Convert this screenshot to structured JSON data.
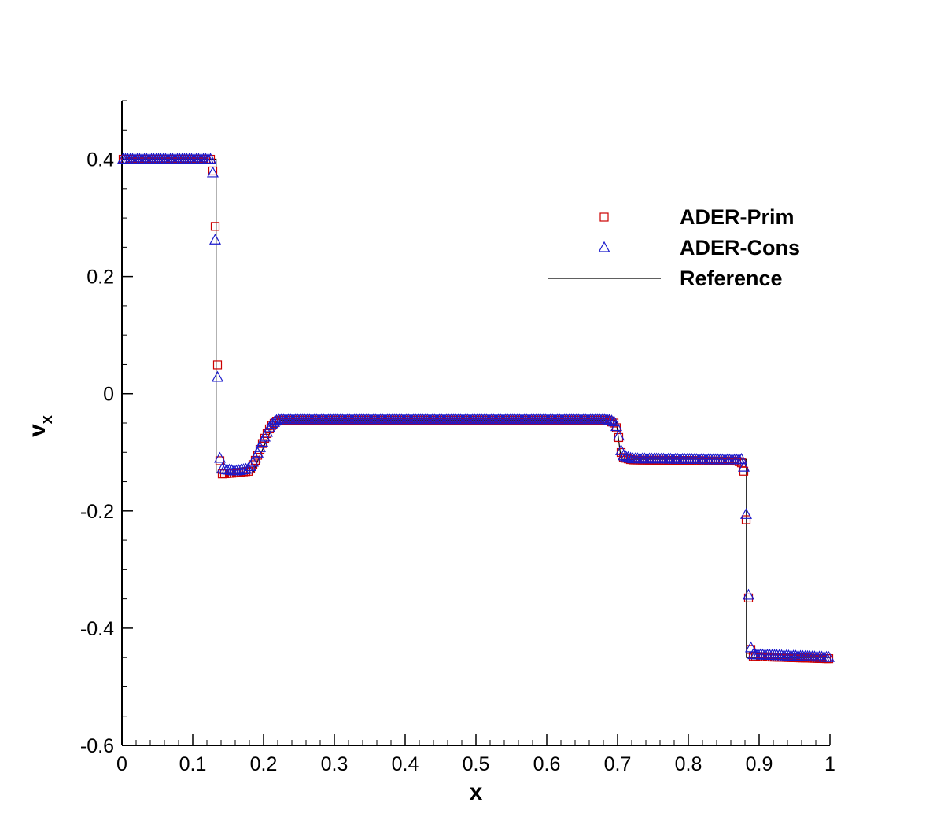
{
  "chart_data": {
    "type": "scatter",
    "xlabel": "x",
    "ylabel": "v",
    "ylabel_subscript": "x",
    "xlim": [
      0,
      1
    ],
    "ylim": [
      -0.6,
      0.5
    ],
    "x_ticks": [
      "0",
      "0.1",
      "0.2",
      "0.3",
      "0.4",
      "0.5",
      "0.6",
      "0.7",
      "0.8",
      "0.9",
      "1"
    ],
    "y_ticks": [
      "-0.6",
      "-0.4",
      "-0.2",
      "0",
      "0.2",
      "0.4"
    ],
    "grid": false,
    "legend_position": "top-right",
    "series": [
      {
        "name": "ADER-Prim",
        "marker": "square",
        "color": "#cc0000",
        "breakpoints": [
          [
            0.0,
            0.4
          ],
          [
            0.125,
            0.4
          ],
          [
            0.13,
            0.37
          ],
          [
            0.133,
            0.218
          ],
          [
            0.136,
            -0.035
          ],
          [
            0.139,
            -0.137
          ],
          [
            0.16,
            -0.135
          ],
          [
            0.18,
            -0.132
          ],
          [
            0.19,
            -0.11
          ],
          [
            0.2,
            -0.08
          ],
          [
            0.21,
            -0.056
          ],
          [
            0.22,
            -0.045
          ],
          [
            0.686,
            -0.045
          ],
          [
            0.695,
            -0.05
          ],
          [
            0.7,
            -0.062
          ],
          [
            0.703,
            -0.085
          ],
          [
            0.706,
            -0.108
          ],
          [
            0.72,
            -0.113
          ],
          [
            0.87,
            -0.115
          ],
          [
            0.875,
            -0.118
          ],
          [
            0.879,
            -0.135
          ],
          [
            0.883,
            -0.255
          ],
          [
            0.886,
            -0.395
          ],
          [
            0.889,
            -0.448
          ],
          [
            1.0,
            -0.452
          ]
        ]
      },
      {
        "name": "ADER-Cons",
        "marker": "triangle",
        "color": "#1a1acc",
        "breakpoints": [
          [
            0.0,
            0.4
          ],
          [
            0.125,
            0.4
          ],
          [
            0.13,
            0.365
          ],
          [
            0.133,
            0.18
          ],
          [
            0.136,
            -0.048
          ],
          [
            0.139,
            -0.128
          ],
          [
            0.16,
            -0.132
          ],
          [
            0.18,
            -0.128
          ],
          [
            0.19,
            -0.106
          ],
          [
            0.2,
            -0.078
          ],
          [
            0.21,
            -0.054
          ],
          [
            0.22,
            -0.044
          ],
          [
            0.686,
            -0.044
          ],
          [
            0.695,
            -0.048
          ],
          [
            0.7,
            -0.06
          ],
          [
            0.703,
            -0.082
          ],
          [
            0.706,
            -0.105
          ],
          [
            0.72,
            -0.111
          ],
          [
            0.87,
            -0.113
          ],
          [
            0.875,
            -0.112
          ],
          [
            0.879,
            -0.128
          ],
          [
            0.883,
            -0.245
          ],
          [
            0.886,
            -0.393
          ],
          [
            0.889,
            -0.445
          ],
          [
            1.0,
            -0.45
          ]
        ]
      },
      {
        "name": "Reference",
        "marker": "line",
        "color": "#000000",
        "breakpoints": [
          [
            0.0,
            0.4
          ],
          [
            0.133,
            0.4
          ],
          [
            0.133,
            -0.135
          ],
          [
            0.185,
            -0.135
          ],
          [
            0.195,
            -0.105
          ],
          [
            0.215,
            -0.05
          ],
          [
            0.225,
            -0.045
          ],
          [
            0.698,
            -0.045
          ],
          [
            0.705,
            -0.112
          ],
          [
            0.882,
            -0.112
          ],
          [
            0.882,
            -0.45
          ],
          [
            1.0,
            -0.45
          ]
        ]
      }
    ]
  }
}
